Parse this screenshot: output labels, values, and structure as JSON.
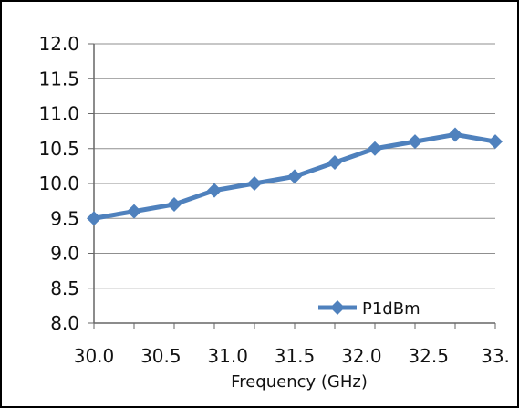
{
  "chart_data": {
    "type": "line",
    "title": "",
    "xlabel": "Frequency (GHz)",
    "ylabel": "",
    "xlim": [
      30.0,
      33.0
    ],
    "ylim": [
      8.0,
      12.0
    ],
    "x_tick_labels": [
      "30.0",
      "30.5",
      "31.0",
      "31.5",
      "32.0",
      "32.5",
      "33."
    ],
    "y_tick_labels": [
      "12.0",
      "11.5",
      "11.0",
      "10.5",
      "10.0",
      "9.5",
      "9.0",
      "8.5",
      "8.0"
    ],
    "grid": true,
    "legend": {
      "placement": "bottom-right",
      "entries": [
        "P1dBm"
      ]
    },
    "series": [
      {
        "name": "P1dBm",
        "x": [
          30.0,
          30.3,
          30.6,
          30.9,
          31.2,
          31.5,
          31.8,
          32.1,
          32.4,
          32.7,
          33.0
        ],
        "values": [
          9.5,
          9.6,
          9.7,
          9.9,
          10.0,
          10.1,
          10.3,
          10.5,
          10.6,
          10.7,
          10.6
        ],
        "color": "#4F81BD",
        "marker": "diamond"
      }
    ]
  }
}
